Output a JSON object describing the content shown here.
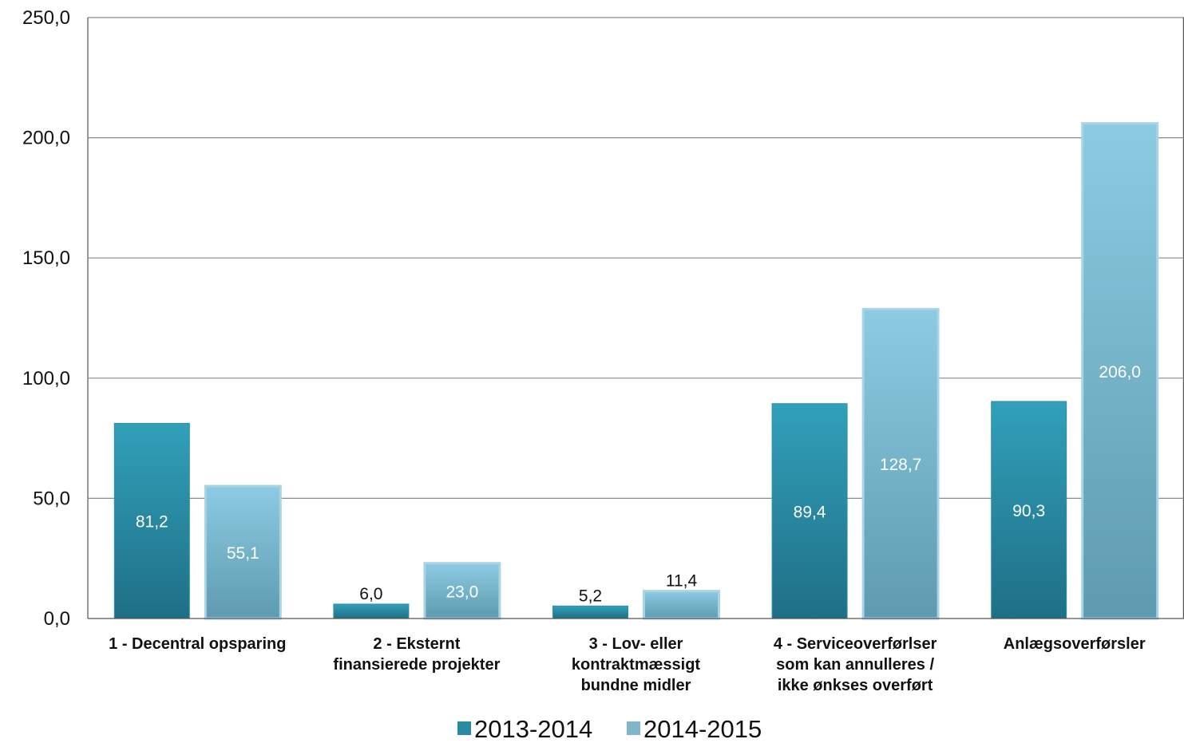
{
  "chart_data": {
    "type": "bar",
    "categories": [
      [
        "1 - Decentral opsparing"
      ],
      [
        "2 - Eksternt",
        "finansierede projekter"
      ],
      [
        "3 - Lov- eller",
        "kontraktmæssigt",
        "bundne midler"
      ],
      [
        "4 - Serviceoverførlser",
        "som kan annulleres /",
        "ikke ønkses overført"
      ],
      [
        "Anlægsoverførsler"
      ]
    ],
    "series": [
      {
        "name": "2013-2014",
        "values": [
          81.2,
          6.0,
          5.2,
          89.4,
          90.3
        ],
        "labels": [
          "81,2",
          "6,0",
          "5,2",
          "89,4",
          "90,3"
        ],
        "color": "#2a8aa4"
      },
      {
        "name": "2014-2015",
        "values": [
          55.1,
          23.0,
          11.4,
          128.7,
          206.0
        ],
        "labels": [
          "55,1",
          "23,0",
          "11,4",
          "128,7",
          "206,0"
        ],
        "color": "#7fb6cc"
      }
    ],
    "y_ticks": [
      "0,0",
      "50,0",
      "100,0",
      "150,0",
      "200,0",
      "250,0"
    ],
    "ylim": [
      0,
      250
    ],
    "grid": true,
    "legend_position": "bottom"
  }
}
